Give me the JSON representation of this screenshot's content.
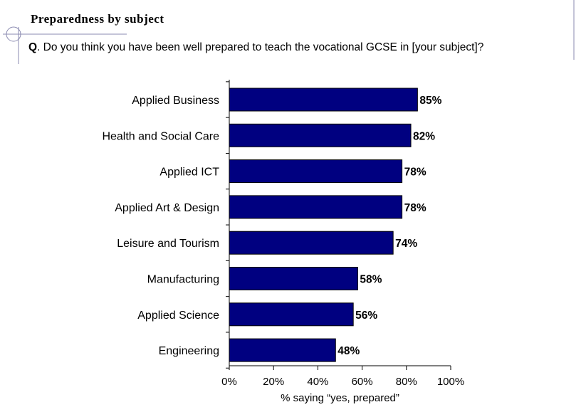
{
  "header": {
    "title": "Preparedness by subject",
    "question_prefix": "Q",
    "question_text": ". Do you think you have been well prepared to teach the vocational GCSE in [your subject]?"
  },
  "chart_data": {
    "type": "bar",
    "orientation": "horizontal",
    "categories": [
      "Applied Business",
      "Health and Social Care",
      "Applied ICT",
      "Applied Art & Design",
      "Leisure and Tourism",
      "Manufacturing",
      "Applied Science",
      "Engineering"
    ],
    "values": [
      85,
      82,
      78,
      78,
      74,
      58,
      56,
      48
    ],
    "value_labels": [
      "85%",
      "82%",
      "78%",
      "78%",
      "74%",
      "58%",
      "56%",
      "48%"
    ],
    "xlabel": "% saying “yes, prepared”",
    "xlim": [
      0,
      100
    ],
    "xticks": [
      0,
      20,
      40,
      60,
      80,
      100
    ],
    "xtick_labels": [
      "0%",
      "20%",
      "40%",
      "60%",
      "80%",
      "100%"
    ],
    "bar_color": "#000080",
    "grid": false
  }
}
